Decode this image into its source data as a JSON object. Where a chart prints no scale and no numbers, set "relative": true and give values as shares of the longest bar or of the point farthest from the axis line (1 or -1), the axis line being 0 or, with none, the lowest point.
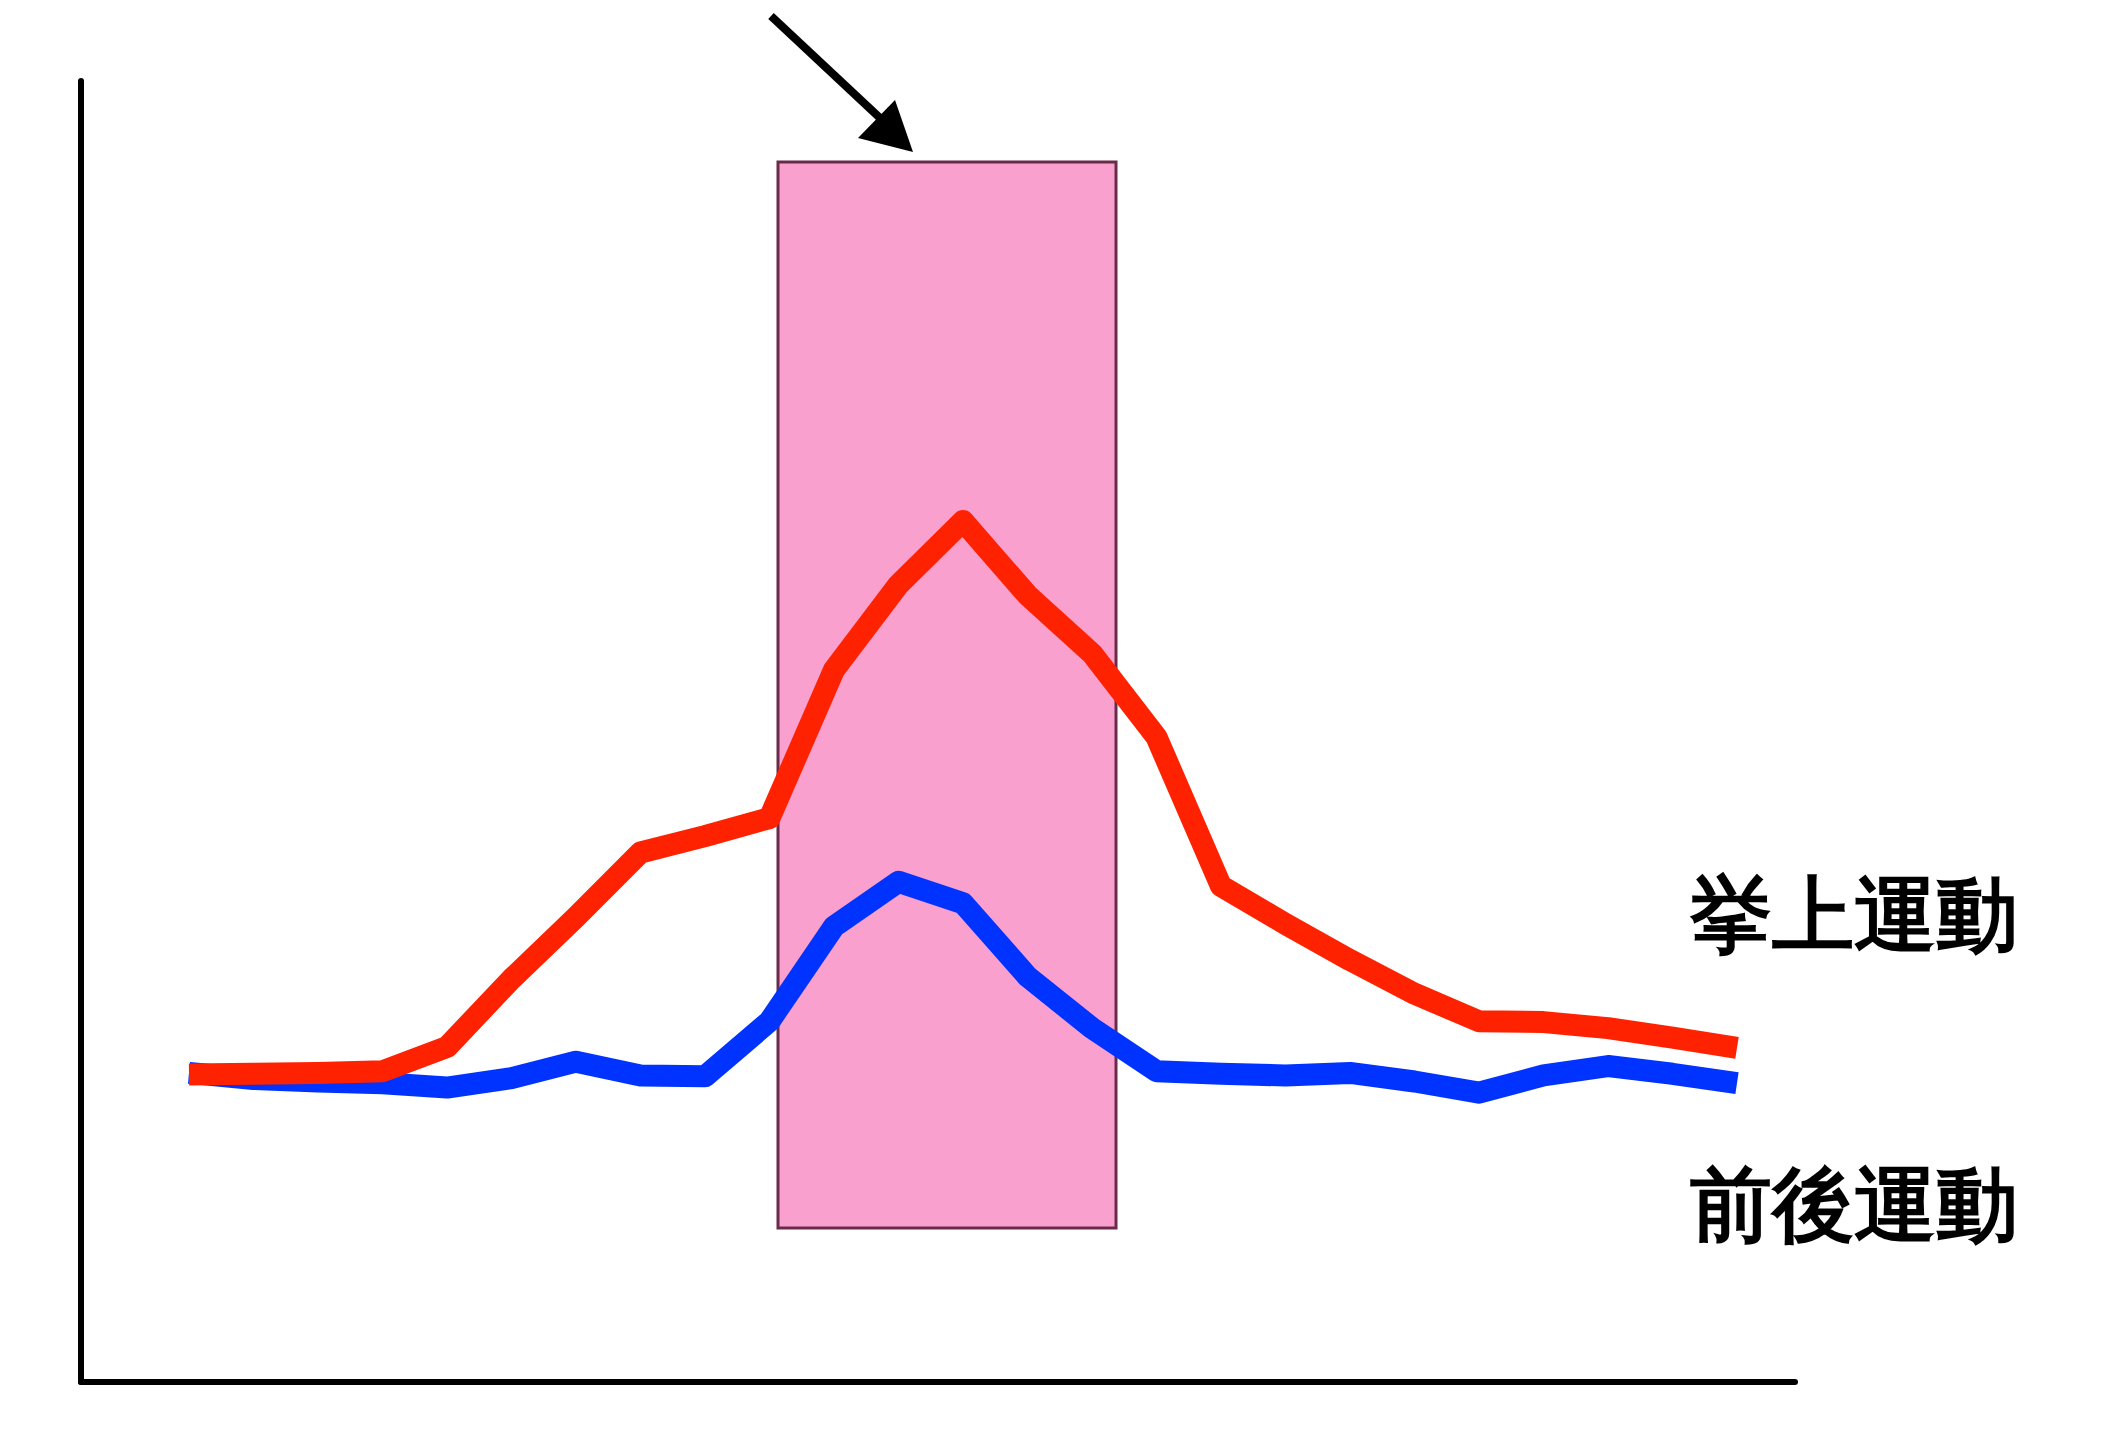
{
  "chart_data": {
    "type": "line",
    "relative": true,
    "categories": [
      null,
      null,
      null,
      null,
      null,
      null,
      null,
      null,
      null,
      null,
      null,
      null,
      null,
      null,
      null,
      null,
      null,
      null,
      null,
      null,
      null,
      null,
      null,
      null,
      null
    ],
    "series": [
      {
        "name": "挙上運動",
        "color": "#ff2200",
        "values": [
          0.357,
          0.358,
          0.359,
          0.361,
          0.389,
          0.468,
          0.54,
          0.615,
          0.634,
          0.655,
          0.827,
          0.926,
          1.0,
          0.914,
          0.846,
          0.749,
          0.576,
          0.532,
          0.49,
          0.451,
          0.419,
          0.418,
          0.411,
          0.4,
          0.388
        ]
      },
      {
        "name": "前後運動",
        "color": "#0033ff",
        "values": [
          0.359,
          0.352,
          0.349,
          0.347,
          0.342,
          0.353,
          0.372,
          0.356,
          0.355,
          0.419,
          0.529,
          0.581,
          0.556,
          0.471,
          0.411,
          0.361,
          0.358,
          0.356,
          0.359,
          0.349,
          0.336,
          0.356,
          0.367,
          0.358,
          0.347
        ]
      }
    ]
  }
}
